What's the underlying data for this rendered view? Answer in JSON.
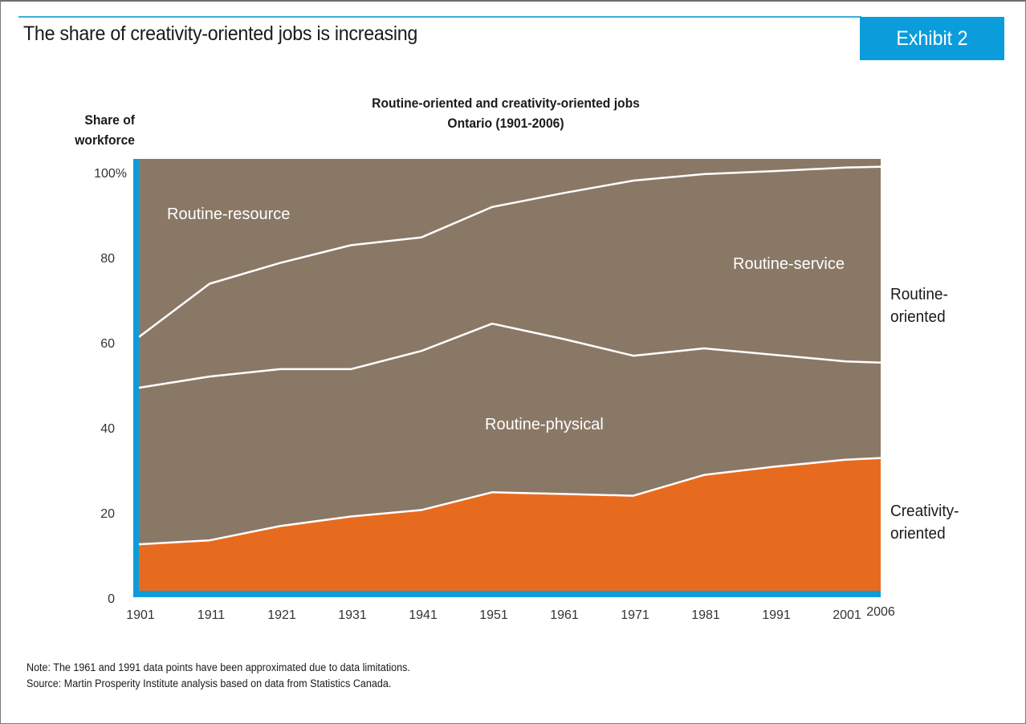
{
  "header": {
    "title": "The share of creativity-oriented jobs is increasing",
    "exhibit_label": "Exhibit 2"
  },
  "chart_data": {
    "type": "area",
    "stacked": true,
    "title": "Routine-oriented and creativity-oriented jobs",
    "subtitle": "Ontario (1901-2006)",
    "ylabel_line1": "Share of",
    "ylabel_line2": "workforce",
    "xlabel": "",
    "x": [
      1901,
      1911,
      1921,
      1931,
      1941,
      1951,
      1961,
      1971,
      1981,
      1991,
      2001,
      2006
    ],
    "x_tick_labels": [
      "1901",
      "1911",
      "1921",
      "1931",
      "1941",
      "1951",
      "1961",
      "1971",
      "1981",
      "1991",
      "2001",
      "2006"
    ],
    "y_ticks": [
      0,
      20,
      40,
      60,
      80,
      100
    ],
    "y_tick_labels": [
      "0",
      "20",
      "40",
      "60",
      "80",
      "100%"
    ],
    "ylim": [
      0,
      100
    ],
    "grid": false,
    "series": [
      {
        "name": "Creativity-oriented",
        "color": "#e76b1f",
        "values": [
          11.1,
          12.0,
          15.3,
          17.5,
          19.0,
          23.1,
          22.7,
          22.3,
          27.1,
          29.0,
          30.6,
          31.0
        ]
      },
      {
        "name": "Routine-physical",
        "color": "#8a7866",
        "values": [
          36.1,
          37.8,
          36.2,
          34.0,
          36.7,
          38.9,
          35.8,
          32.3,
          29.2,
          25.8,
          22.7,
          22.0
        ]
      },
      {
        "name": "Routine-service",
        "color": "#8a7866",
        "values": [
          11.7,
          21.4,
          24.5,
          28.6,
          26.2,
          26.9,
          33.6,
          40.4,
          40.2,
          42.4,
          44.7,
          45.2
        ]
      },
      {
        "name": "Routine-resource",
        "color": "#8a7866",
        "values": [
          41.1,
          28.8,
          24.0,
          19.9,
          18.1,
          11.1,
          7.9,
          5.0,
          3.5,
          2.8,
          2.0,
          1.8
        ]
      }
    ],
    "area_labels": {
      "resource": "Routine-resource",
      "service": "Routine-service",
      "physical": "Routine-physical"
    },
    "side_labels": {
      "routine_line1": "Routine-",
      "routine_line2": "oriented",
      "creativity_line1": "Creativity-",
      "creativity_line2": "oriented"
    },
    "axis_color": "#0b9ddb",
    "separator_color": "#ffffff"
  },
  "footer": {
    "note": "Note: The 1961 and 1991 data points have been approximated due to data limitations.",
    "source": "Source: Martin Prosperity Institute analysis based on data from Statistics Canada."
  }
}
